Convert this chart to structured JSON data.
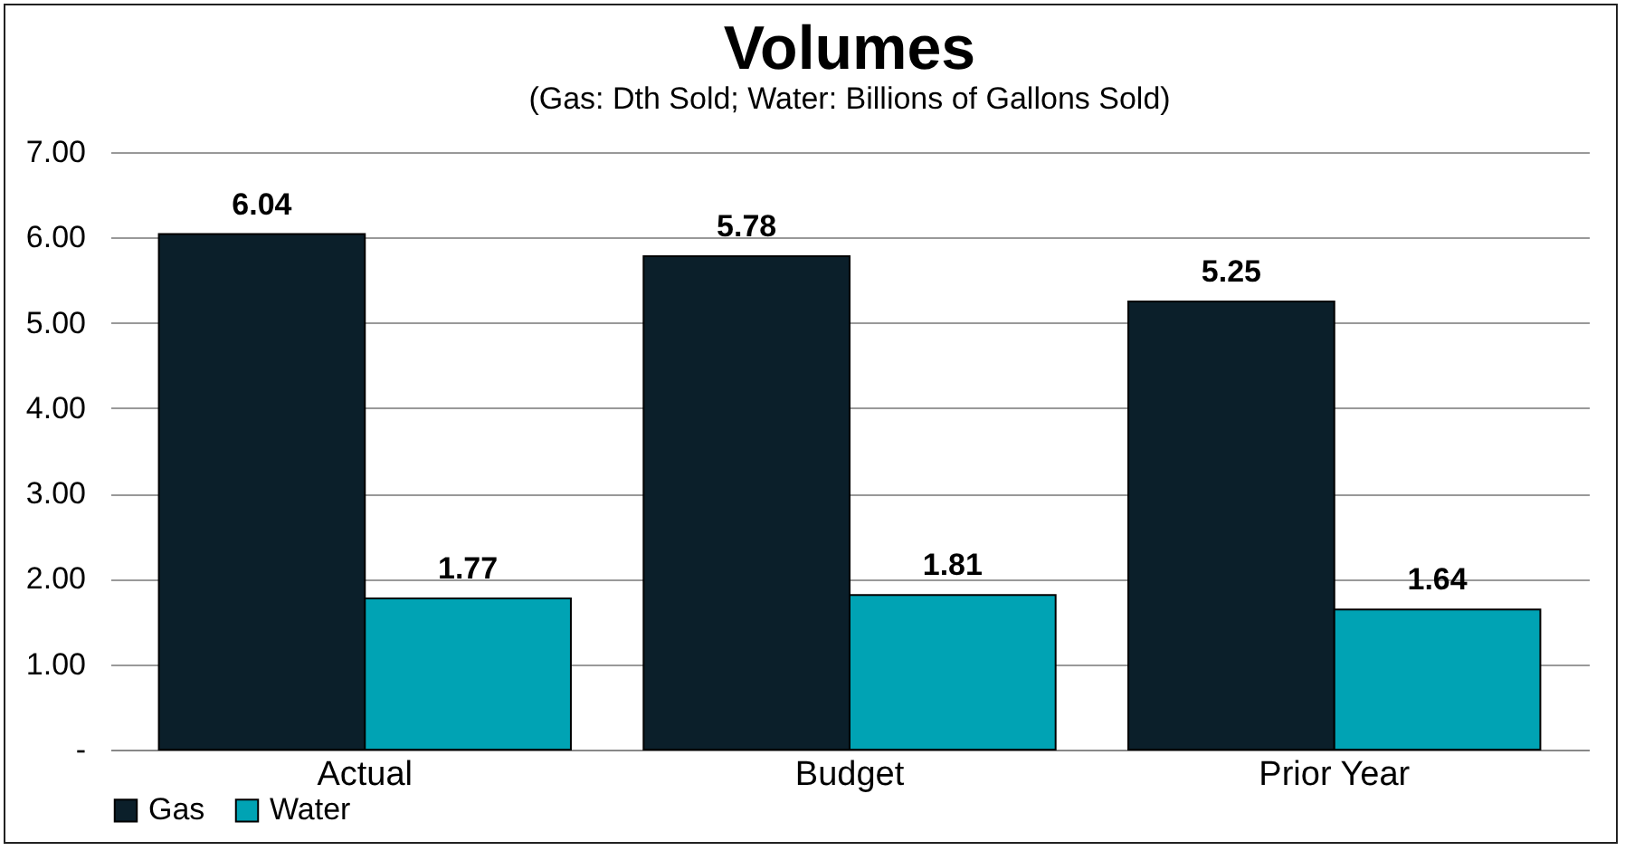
{
  "chart_data": {
    "type": "bar",
    "title": "Volumes",
    "subtitle": "(Gas: Dth Sold; Water: Billions of Gallons Sold)",
    "categories": [
      "Actual",
      "Budget",
      "Prior Year"
    ],
    "series": [
      {
        "name": "Gas",
        "color": "#0b1f2a",
        "values": [
          6.04,
          5.78,
          5.25
        ]
      },
      {
        "name": "Water",
        "color": "#00a3b4",
        "values": [
          1.77,
          1.81,
          1.64
        ]
      }
    ],
    "ylim": [
      0,
      7
    ],
    "yticks": [
      {
        "value": 0,
        "label": "-"
      },
      {
        "value": 1,
        "label": "1.00"
      },
      {
        "value": 2,
        "label": "2.00"
      },
      {
        "value": 3,
        "label": "3.00"
      },
      {
        "value": 4,
        "label": "4.00"
      },
      {
        "value": 5,
        "label": "5.00"
      },
      {
        "value": 6,
        "label": "6.00"
      },
      {
        "value": 7,
        "label": "7.00"
      }
    ],
    "grid": "y",
    "legend": "bottom",
    "data_labels": true
  }
}
